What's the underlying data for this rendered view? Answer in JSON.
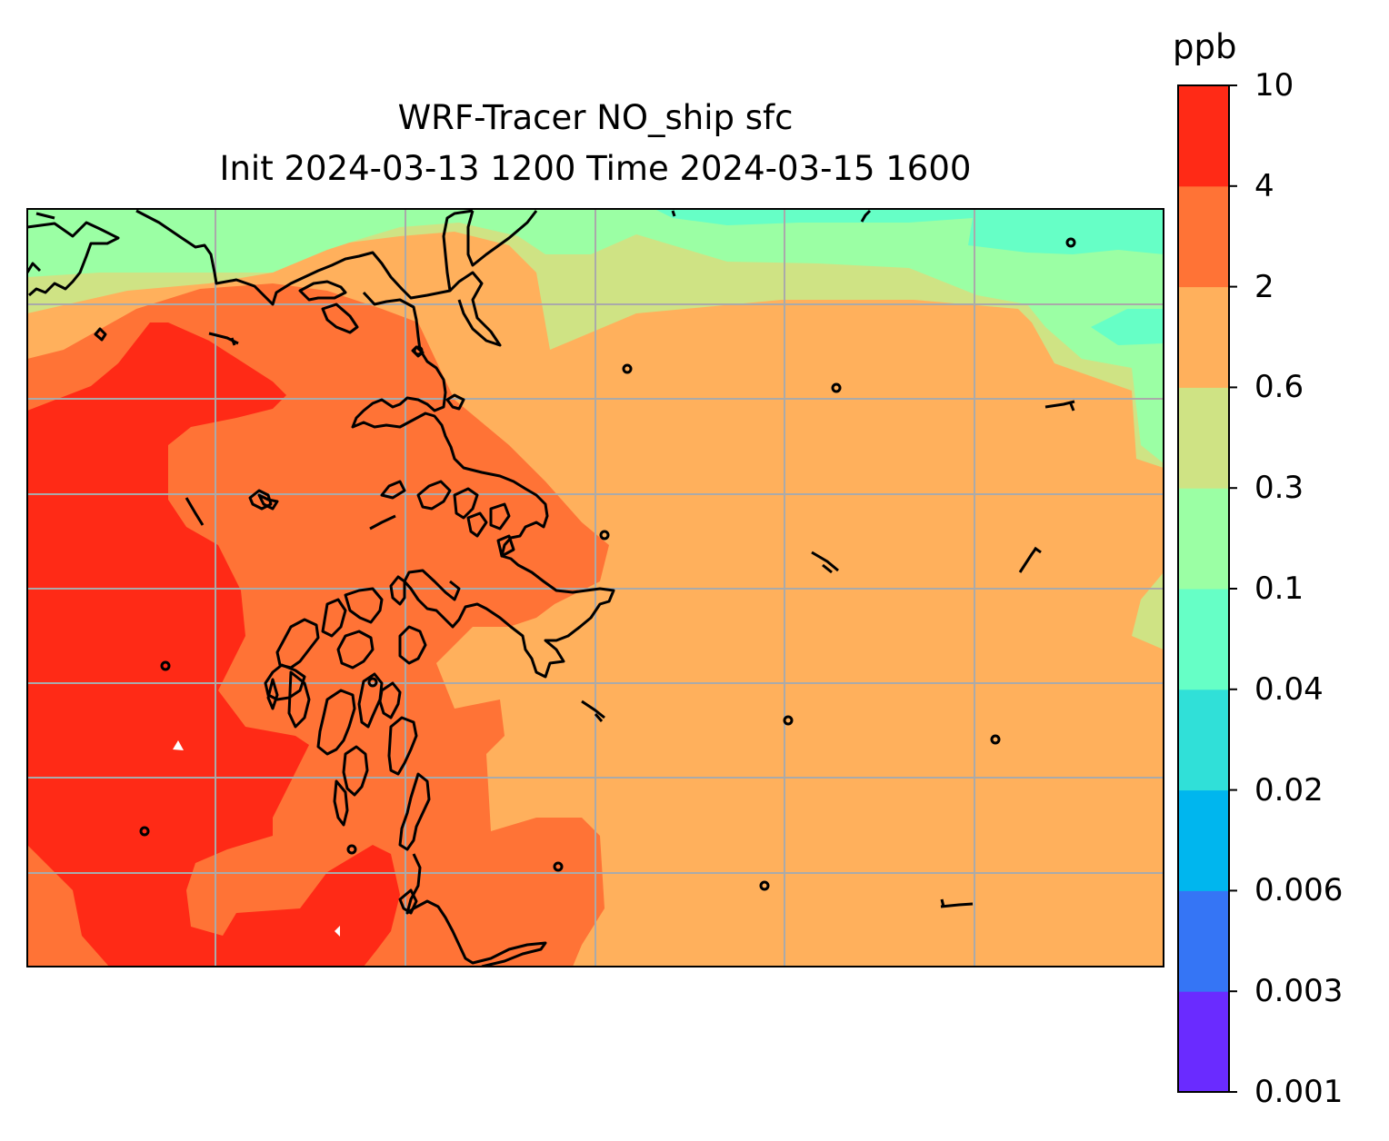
{
  "title_line1": "WRF-Tracer NO_ship sfc",
  "title_line2": "Init 2024-03-13 1200 Time 2024-03-15 1600",
  "colorbar": {
    "unit": "ppb",
    "ticks": [
      "0.001",
      "0.003",
      "0.006",
      "0.02",
      "0.04",
      "0.1",
      "0.3",
      "0.6",
      "2",
      "4",
      "10"
    ],
    "colors": [
      "#6a2bff",
      "#3575f5",
      "#00b6ee",
      "#30e0d8",
      "#66ffc6",
      "#9bffa4",
      "#cfe384",
      "#ffb05c",
      "#ff7336",
      "#ff2a16"
    ]
  },
  "map": {
    "fill_levels": {
      "level_0_3_0_6": "#cfe384",
      "level_0_1_0_3": "#9bffa4",
      "level_0_04_0_1": "#66ffc6",
      "level_0_6_2": "#ffb05c",
      "level_2_4": "#ff7336",
      "level_4_10": "#ff2a16"
    },
    "coastline_color": "#000000",
    "gridline_color": "#aaaaaa"
  }
}
